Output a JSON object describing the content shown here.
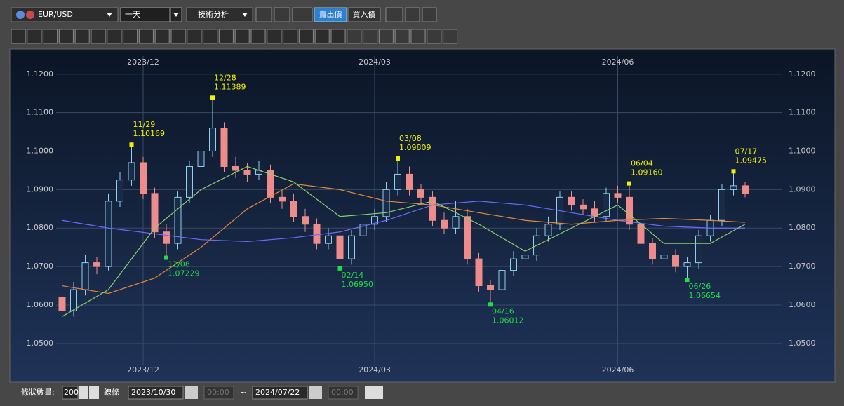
{
  "ui": {
    "symbol": "EUR/USD",
    "period": "一天",
    "analysis": "技術分析",
    "sell": "賣出價",
    "buy": "買入價",
    "count_label": "條狀數量:",
    "count": "200",
    "line_label": "線條",
    "from_date": "2023/10/30",
    "from_time": "00:00",
    "tilde": "~",
    "to_date": "2024/07/22",
    "to_time": "00:00"
  },
  "chart_data": {
    "type": "candlestick",
    "categories": [
      null,
      null,
      null,
      null,
      null,
      null,
      null,
      "2023/12",
      null,
      null,
      null,
      null,
      null,
      null,
      null,
      null,
      null,
      null,
      null,
      null,
      null,
      null,
      null,
      null,
      null,
      null,
      null,
      "2024/03",
      null,
      null,
      null,
      null,
      null,
      null,
      null,
      null,
      null,
      null,
      null,
      null,
      null,
      null,
      null,
      null,
      null,
      null,
      null,
      null,
      "2024/06",
      null,
      null,
      null,
      null,
      null,
      null,
      null,
      null,
      null,
      null,
      null
    ],
    "open": [
      1.062,
      1.0585,
      1.064,
      1.071,
      1.07,
      1.087,
      1.0925,
      1.097,
      1.089,
      1.079,
      1.076,
      1.088,
      1.096,
      1.1,
      1.106,
      1.096,
      1.095,
      1.094,
      1.095,
      1.088,
      1.087,
      1.083,
      1.081,
      1.076,
      1.078,
      1.072,
      1.078,
      1.081,
      1.083,
      1.09,
      1.094,
      1.09,
      1.088,
      1.082,
      1.08,
      1.083,
      1.072,
      1.065,
      1.064,
      1.069,
      1.072,
      1.073,
      1.078,
      1.081,
      1.088,
      1.086,
      1.085,
      1.083,
      1.089,
      1.088,
      1.081,
      1.076,
      1.072,
      1.073,
      1.07,
      1.071,
      1.078,
      1.082,
      1.09,
      1.091
    ],
    "high": [
      1.064,
      1.066,
      1.073,
      1.0725,
      1.089,
      1.0945,
      1.10169,
      1.0985,
      1.0905,
      1.081,
      1.0895,
      1.0975,
      1.1015,
      1.11389,
      1.1075,
      1.0985,
      1.097,
      1.0975,
      1.0965,
      1.09,
      1.089,
      1.085,
      1.0825,
      1.08,
      1.0795,
      1.0795,
      1.083,
      1.085,
      1.092,
      1.09809,
      1.096,
      1.0915,
      1.0895,
      1.084,
      1.087,
      1.085,
      1.0735,
      1.0665,
      1.0705,
      1.074,
      1.075,
      1.08,
      1.083,
      1.0895,
      1.0895,
      1.0875,
      1.087,
      1.0905,
      1.091,
      1.0916,
      1.0825,
      1.0775,
      1.075,
      1.0745,
      1.0725,
      1.0795,
      1.0835,
      1.0915,
      1.09475,
      1.092
    ],
    "low": [
      1.054,
      1.057,
      1.0625,
      1.068,
      1.069,
      1.0855,
      1.091,
      1.0875,
      1.0775,
      1.07229,
      1.0745,
      1.0865,
      1.0945,
      1.0985,
      1.0945,
      1.093,
      1.092,
      1.0925,
      1.0865,
      1.085,
      1.0815,
      1.079,
      1.0745,
      1.0745,
      1.0695,
      1.0705,
      1.0765,
      1.0795,
      1.0815,
      1.0885,
      1.0885,
      1.086,
      1.0805,
      1.0785,
      1.0785,
      1.0705,
      1.0635,
      1.06012,
      1.0625,
      1.0675,
      1.07,
      1.0715,
      1.0765,
      1.0795,
      1.0845,
      1.0835,
      1.0815,
      1.0815,
      1.0865,
      1.0795,
      1.0745,
      1.0705,
      1.0705,
      1.0685,
      1.06654,
      1.0695,
      1.0765,
      1.0805,
      1.0885,
      1.088
    ],
    "close": [
      1.0585,
      1.064,
      1.071,
      1.07,
      1.087,
      1.0925,
      1.097,
      1.089,
      1.079,
      1.076,
      1.088,
      1.096,
      1.1,
      1.106,
      1.096,
      1.095,
      1.094,
      1.095,
      1.088,
      1.087,
      1.083,
      1.081,
      1.076,
      1.078,
      1.072,
      1.078,
      1.081,
      1.083,
      1.09,
      1.094,
      1.09,
      1.088,
      1.082,
      1.08,
      1.083,
      1.072,
      1.065,
      1.064,
      1.069,
      1.072,
      1.073,
      1.078,
      1.081,
      1.088,
      1.086,
      1.085,
      1.083,
      1.089,
      1.088,
      1.081,
      1.076,
      1.072,
      1.073,
      1.07,
      1.071,
      1.078,
      1.082,
      1.09,
      1.091,
      1.089
    ],
    "up_color": "#8fd0ee",
    "down_color": "#ee8c8c",
    "series": [
      {
        "color": "#6b6bff",
        "x": [
          0,
          4,
          8,
          12,
          16,
          20,
          24,
          28,
          32,
          36,
          40,
          44,
          48,
          52,
          56,
          59
        ],
        "values": [
          1.082,
          1.08,
          1.0785,
          1.077,
          1.0765,
          1.0775,
          1.079,
          1.082,
          1.086,
          1.087,
          1.086,
          1.084,
          1.082,
          1.0805,
          1.08,
          1.08
        ]
      },
      {
        "color": "#e0883a",
        "x": [
          0,
          4,
          8,
          12,
          16,
          20,
          24,
          28,
          32,
          36,
          40,
          44,
          48,
          52,
          56,
          59
        ],
        "values": [
          1.065,
          1.063,
          1.067,
          1.075,
          1.085,
          1.0915,
          1.09,
          1.087,
          1.086,
          1.084,
          1.082,
          1.081,
          1.082,
          1.0825,
          1.082,
          1.0815
        ]
      },
      {
        "color": "#8ccf6a",
        "x": [
          0,
          4,
          8,
          12,
          16,
          20,
          24,
          28,
          32,
          36,
          40,
          44,
          48,
          52,
          56,
          59
        ],
        "values": [
          1.057,
          1.064,
          1.08,
          1.09,
          1.096,
          1.092,
          1.083,
          1.084,
          1.087,
          1.081,
          1.074,
          1.08,
          1.086,
          1.076,
          1.076,
          1.081
        ]
      }
    ],
    "annotations": [
      {
        "date": "11/29",
        "kind": "high",
        "x": 6,
        "value": 1.10169,
        "value_label": "1.10169"
      },
      {
        "date": "12/08",
        "kind": "low",
        "x": 9,
        "value": 1.07229,
        "value_label": "1.07229"
      },
      {
        "date": "12/28",
        "kind": "high",
        "x": 13,
        "value": 1.11389,
        "value_label": "1.11389"
      },
      {
        "date": "02/14",
        "kind": "low",
        "x": 24,
        "value": 1.0695,
        "value_label": "1.06950"
      },
      {
        "date": "03/08",
        "kind": "high",
        "x": 29,
        "value": 1.09809,
        "value_label": "1.09809"
      },
      {
        "date": "04/16",
        "kind": "low",
        "x": 37,
        "value": 1.06012,
        "value_label": "1.06012"
      },
      {
        "date": "06/04",
        "kind": "high",
        "x": 49,
        "value": 1.0916,
        "value_label": "1.09160"
      },
      {
        "date": "06/26",
        "kind": "low",
        "x": 54,
        "value": 1.06654,
        "value_label": "1.06654"
      },
      {
        "date": "07/17",
        "kind": "high",
        "x": 58,
        "value": 1.09475,
        "value_label": "1.09475"
      }
    ],
    "ylim": [
      1.0445,
      1.1247
    ],
    "yticks": [
      {
        "value": 1.05,
        "label": "1.0500"
      },
      {
        "value": 1.06,
        "label": "1.0600"
      },
      {
        "value": 1.07,
        "label": "1.0700"
      },
      {
        "value": 1.08,
        "label": "1.0800"
      },
      {
        "value": 1.09,
        "label": "1.0900"
      },
      {
        "value": 1.1,
        "label": "1.1000"
      },
      {
        "value": 1.11,
        "label": "1.1100"
      },
      {
        "value": 1.12,
        "label": "1.1200"
      }
    ],
    "grid": true
  }
}
